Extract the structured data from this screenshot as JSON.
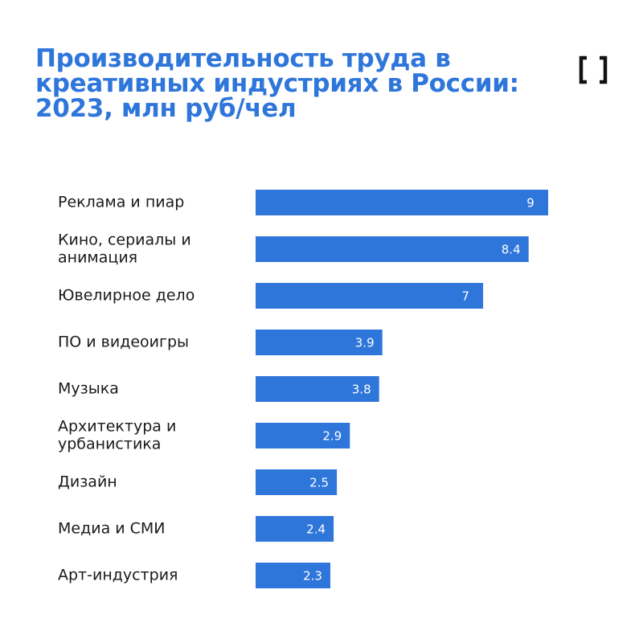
{
  "colors": {
    "accent": "#2f76db",
    "bar": "#2f76db",
    "logo": "#111111"
  },
  "logo": {
    "icon": "bracket-logo-icon"
  },
  "chart_data": {
    "type": "bar",
    "orientation": "horizontal",
    "title": "Производительность труда в креативных индустриях в России: 2023, млн руб/чел",
    "categories": [
      [
        "Реклама и пиар"
      ],
      [
        "Кино, сериалы и",
        "анимация"
      ],
      [
        "Ювелирное дело"
      ],
      [
        "ПО и видеоигры"
      ],
      [
        "Музыка"
      ],
      [
        "Архитектура и",
        "урбанистика"
      ],
      [
        "Дизайн"
      ],
      [
        "Медиа и СМИ"
      ],
      [
        "Арт-индустрия"
      ]
    ],
    "values": [
      9,
      8.4,
      7,
      3.9,
      3.8,
      2.9,
      2.5,
      2.4,
      2.3
    ],
    "xlim": [
      0,
      9
    ],
    "grid": false,
    "legend": "none"
  }
}
